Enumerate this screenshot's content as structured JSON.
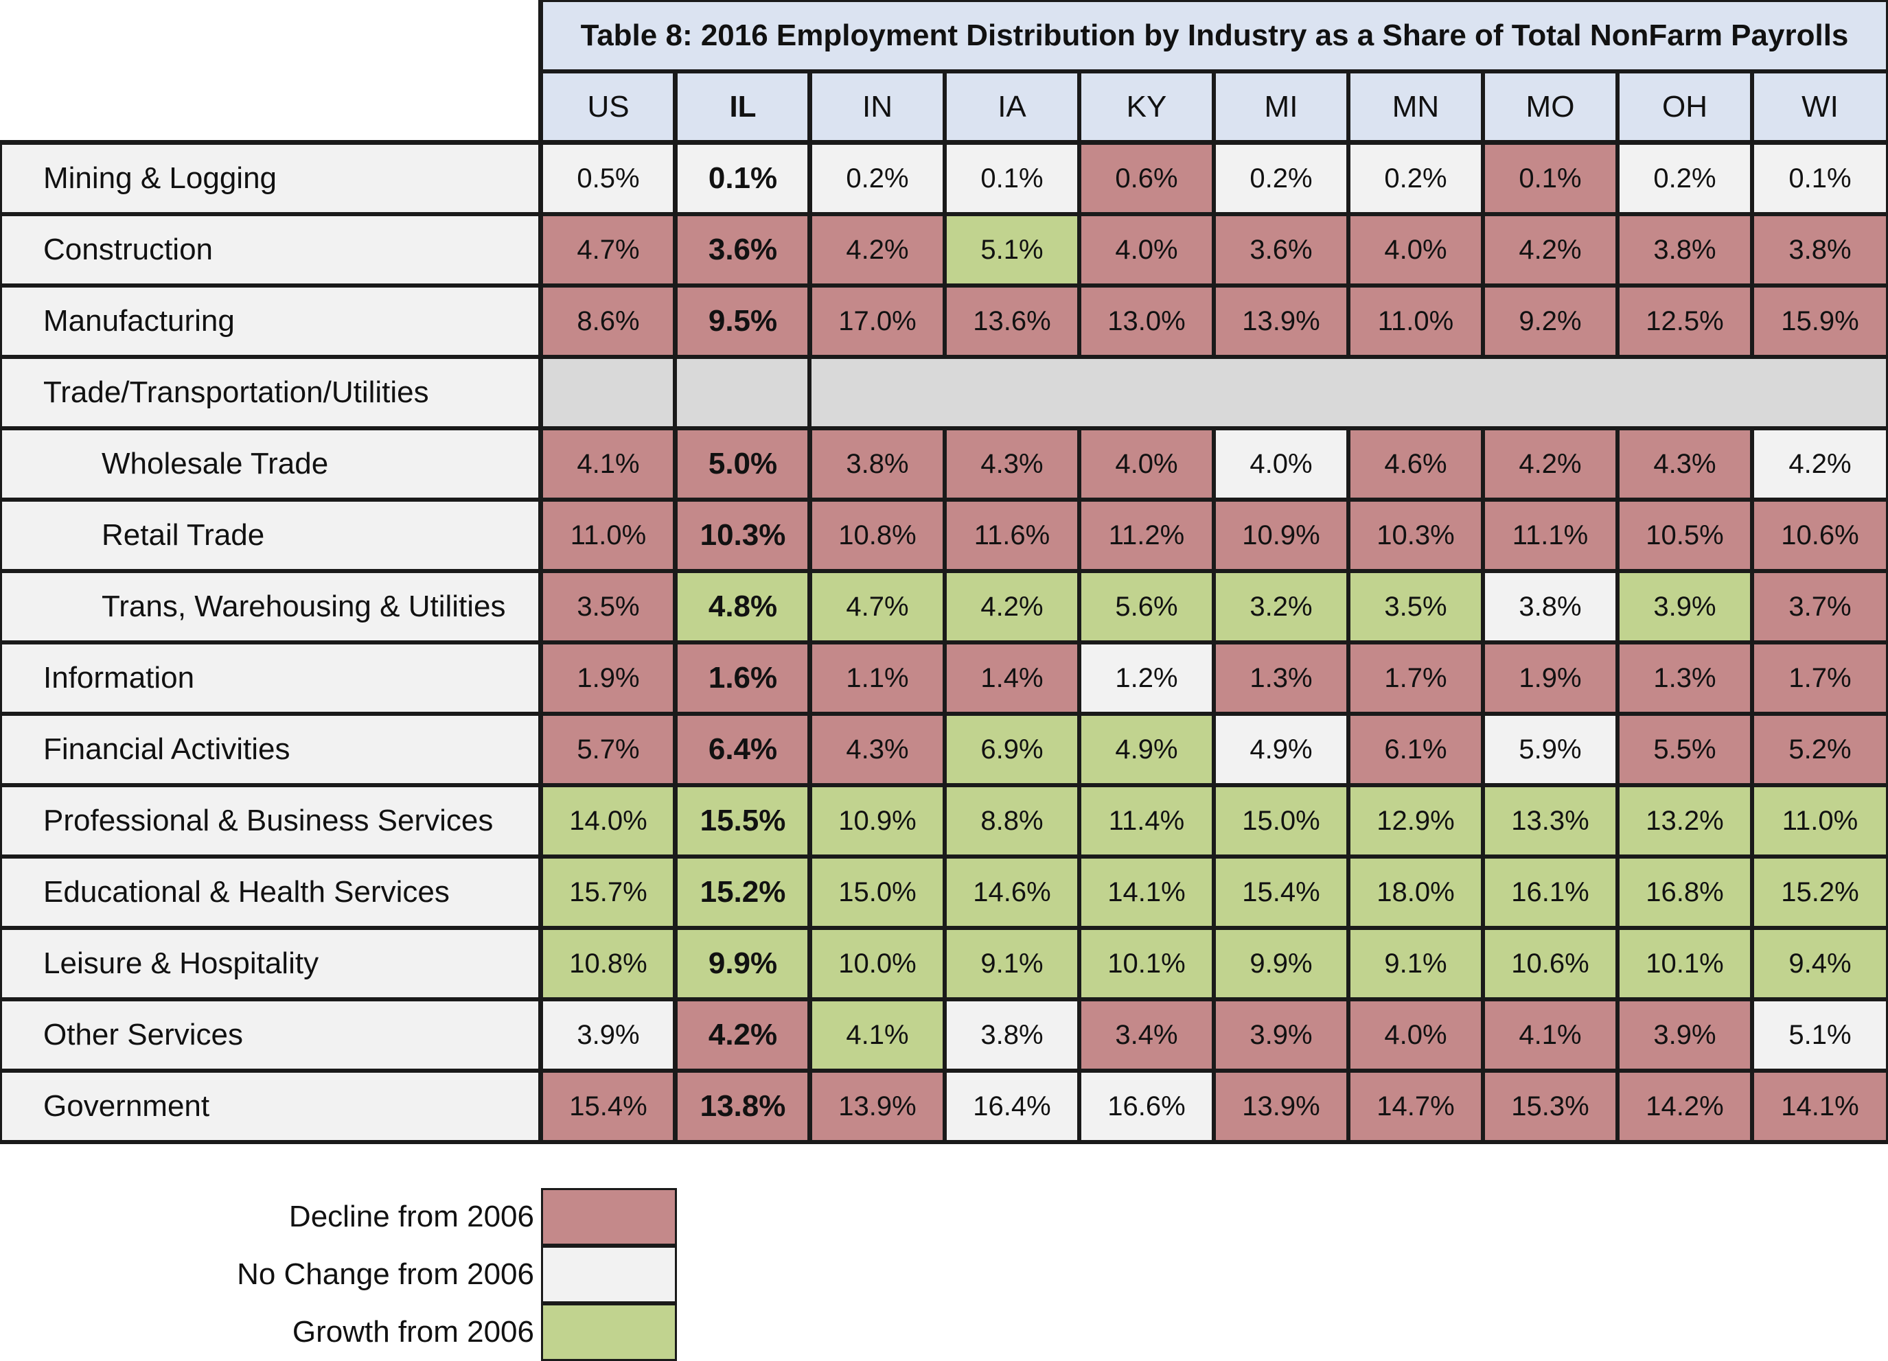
{
  "chart_data": {
    "type": "table",
    "title": "Table 8: 2016 Employment Distribution by Industry as a Share of Total NonFarm Payrolls",
    "columns": [
      "US",
      "IL",
      "IN",
      "IA",
      "KY",
      "MI",
      "MN",
      "MO",
      "OH",
      "WI"
    ],
    "rows": [
      {
        "label": "Mining & Logging",
        "indent": false,
        "values": [
          "0.5%",
          "0.1%",
          "0.2%",
          "0.1%",
          "0.6%",
          "0.2%",
          "0.2%",
          "0.1%",
          "0.2%",
          "0.1%"
        ],
        "status": [
          "n",
          "n",
          "n",
          "n",
          "d",
          "n",
          "n",
          "d",
          "n",
          "n"
        ]
      },
      {
        "label": "Construction",
        "indent": false,
        "values": [
          "4.7%",
          "3.6%",
          "4.2%",
          "5.1%",
          "4.0%",
          "3.6%",
          "4.0%",
          "4.2%",
          "3.8%",
          "3.8%"
        ],
        "status": [
          "d",
          "d",
          "d",
          "g",
          "d",
          "d",
          "d",
          "d",
          "d",
          "d"
        ]
      },
      {
        "label": "Manufacturing",
        "indent": false,
        "values": [
          "8.6%",
          "9.5%",
          "17.0%",
          "13.6%",
          "13.0%",
          "13.9%",
          "11.0%",
          "9.2%",
          "12.5%",
          "15.9%"
        ],
        "status": [
          "d",
          "d",
          "d",
          "d",
          "d",
          "d",
          "d",
          "d",
          "d",
          "d"
        ]
      },
      {
        "label": "Trade/Transportation/Utilities",
        "indent": false,
        "section": true,
        "values": [],
        "status": []
      },
      {
        "label": "Wholesale Trade",
        "indent": true,
        "values": [
          "4.1%",
          "5.0%",
          "3.8%",
          "4.3%",
          "4.0%",
          "4.0%",
          "4.6%",
          "4.2%",
          "4.3%",
          "4.2%"
        ],
        "status": [
          "d",
          "d",
          "d",
          "d",
          "d",
          "n",
          "d",
          "d",
          "d",
          "n"
        ]
      },
      {
        "label": "Retail Trade",
        "indent": true,
        "values": [
          "11.0%",
          "10.3%",
          "10.8%",
          "11.6%",
          "11.2%",
          "10.9%",
          "10.3%",
          "11.1%",
          "10.5%",
          "10.6%"
        ],
        "status": [
          "d",
          "d",
          "d",
          "d",
          "d",
          "d",
          "d",
          "d",
          "d",
          "d"
        ]
      },
      {
        "label": "Trans, Warehousing & Utilities",
        "indent": true,
        "values": [
          "3.5%",
          "4.8%",
          "4.7%",
          "4.2%",
          "5.6%",
          "3.2%",
          "3.5%",
          "3.8%",
          "3.9%",
          "3.7%"
        ],
        "status": [
          "d",
          "g",
          "g",
          "g",
          "g",
          "g",
          "g",
          "n",
          "g",
          "d"
        ]
      },
      {
        "label": "Information",
        "indent": false,
        "values": [
          "1.9%",
          "1.6%",
          "1.1%",
          "1.4%",
          "1.2%",
          "1.3%",
          "1.7%",
          "1.9%",
          "1.3%",
          "1.7%"
        ],
        "status": [
          "d",
          "d",
          "d",
          "d",
          "n",
          "d",
          "d",
          "d",
          "d",
          "d"
        ]
      },
      {
        "label": "Financial Activities",
        "indent": false,
        "values": [
          "5.7%",
          "6.4%",
          "4.3%",
          "6.9%",
          "4.9%",
          "4.9%",
          "6.1%",
          "5.9%",
          "5.5%",
          "5.2%"
        ],
        "status": [
          "d",
          "d",
          "d",
          "g",
          "g",
          "n",
          "d",
          "n",
          "d",
          "d"
        ]
      },
      {
        "label": "Professional & Business Services",
        "indent": false,
        "values": [
          "14.0%",
          "15.5%",
          "10.9%",
          "8.8%",
          "11.4%",
          "15.0%",
          "12.9%",
          "13.3%",
          "13.2%",
          "11.0%"
        ],
        "status": [
          "g",
          "g",
          "g",
          "g",
          "g",
          "g",
          "g",
          "g",
          "g",
          "g"
        ]
      },
      {
        "label": "Educational & Health Services",
        "indent": false,
        "values": [
          "15.7%",
          "15.2%",
          "15.0%",
          "14.6%",
          "14.1%",
          "15.4%",
          "18.0%",
          "16.1%",
          "16.8%",
          "15.2%"
        ],
        "status": [
          "g",
          "g",
          "g",
          "g",
          "g",
          "g",
          "g",
          "g",
          "g",
          "g"
        ]
      },
      {
        "label": "Leisure & Hospitality",
        "indent": false,
        "values": [
          "10.8%",
          "9.9%",
          "10.0%",
          "9.1%",
          "10.1%",
          "9.9%",
          "9.1%",
          "10.6%",
          "10.1%",
          "9.4%"
        ],
        "status": [
          "g",
          "g",
          "g",
          "g",
          "g",
          "g",
          "g",
          "g",
          "g",
          "g"
        ]
      },
      {
        "label": "Other Services",
        "indent": false,
        "values": [
          "3.9%",
          "4.2%",
          "4.1%",
          "3.8%",
          "3.4%",
          "3.9%",
          "4.0%",
          "4.1%",
          "3.9%",
          "5.1%"
        ],
        "status": [
          "n",
          "d",
          "g",
          "n",
          "d",
          "d",
          "d",
          "d",
          "d",
          "n"
        ]
      },
      {
        "label": "Government",
        "indent": false,
        "values": [
          "15.4%",
          "13.8%",
          "13.9%",
          "16.4%",
          "16.6%",
          "13.9%",
          "14.7%",
          "15.3%",
          "14.2%",
          "14.1%"
        ],
        "status": [
          "d",
          "d",
          "d",
          "n",
          "n",
          "d",
          "d",
          "d",
          "d",
          "d"
        ]
      }
    ],
    "legend": [
      {
        "key": "d",
        "label": "Decline from 2006",
        "color": "#c4898a"
      },
      {
        "key": "n",
        "label": "No Change from 2006",
        "color": "#f2f2f2"
      },
      {
        "key": "g",
        "label": "Growth from 2006",
        "color": "#c1d38f"
      }
    ]
  }
}
